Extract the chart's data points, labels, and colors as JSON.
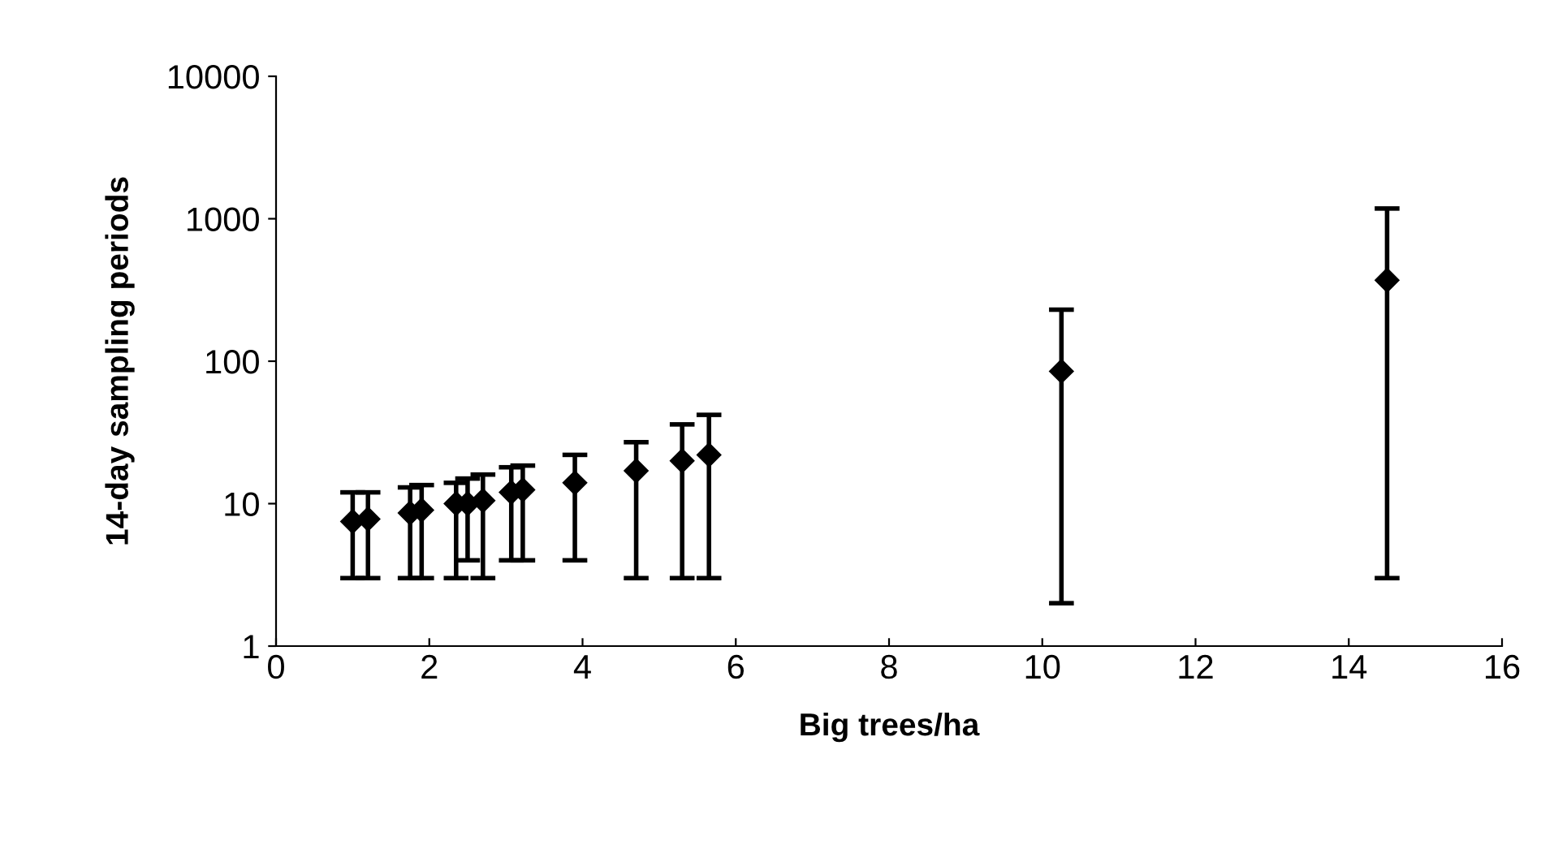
{
  "chart_data": {
    "type": "scatter",
    "xlabel": "Big trees/ha",
    "ylabel": "14-day sampling periods",
    "x": [
      1.0,
      1.2,
      1.75,
      1.9,
      2.35,
      2.5,
      2.7,
      3.07,
      3.22,
      3.9,
      4.7,
      5.3,
      5.65,
      10.25,
      14.5
    ],
    "values": [
      7.5,
      7.8,
      8.6,
      9.0,
      10,
      10,
      10.5,
      12,
      12.5,
      14,
      17,
      20,
      22,
      85,
      370
    ],
    "errors": [
      [
        3,
        12
      ],
      [
        3,
        12
      ],
      [
        3,
        13
      ],
      [
        3,
        13.5
      ],
      [
        3,
        14
      ],
      [
        4,
        15
      ],
      [
        3,
        16
      ],
      [
        4,
        18
      ],
      [
        4,
        18.5
      ],
      [
        4,
        22
      ],
      [
        3,
        27
      ],
      [
        3,
        36
      ],
      [
        3,
        42
      ],
      [
        2,
        230
      ],
      [
        3,
        1180
      ]
    ],
    "color": "#000000",
    "marker": "diamond",
    "log": "y",
    "grid": false,
    "xlim": [
      0,
      16
    ],
    "xticks": [
      0,
      2,
      4,
      6,
      8,
      10,
      12,
      14,
      16
    ],
    "ylim": [
      1,
      10000
    ],
    "yticks": [
      1,
      10,
      100,
      1000,
      10000
    ]
  }
}
